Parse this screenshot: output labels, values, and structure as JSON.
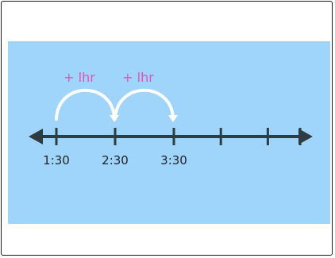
{
  "diagram": {
    "type": "number-line",
    "ticks": [
      {
        "label": "1:30",
        "hours": 1.5
      },
      {
        "label": "2:30",
        "hours": 2.5
      },
      {
        "label": "3:30",
        "hours": 3.5
      },
      {
        "label": "",
        "hours": 4.3
      },
      {
        "label": "",
        "hours": 5.1
      },
      {
        "label": "",
        "hours": 5.65
      }
    ],
    "hops": [
      {
        "label": "+ lhr",
        "from_hours": 1.5,
        "to_hours": 2.5
      },
      {
        "label": "+ lhr",
        "from_hours": 2.5,
        "to_hours": 3.5
      }
    ]
  },
  "colors": {
    "background": "#9fd5fb",
    "line": "#2f3d3f",
    "hop_arc": "#ffffff",
    "hop_label": "#e453b4",
    "tick_label": "#222222"
  }
}
